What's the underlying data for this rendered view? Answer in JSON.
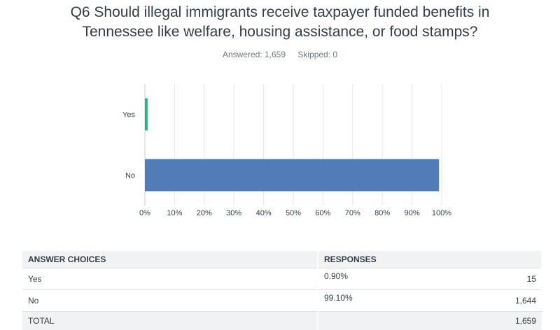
{
  "question": {
    "line1": "Q6 Should illegal immigrants receive taxpayer funded benefits in",
    "line2": "Tennessee like welfare, housing assistance, or food stamps?"
  },
  "stats": {
    "answered": "Answered: 1,659",
    "skipped": "Skipped: 0"
  },
  "chart_data": {
    "type": "bar",
    "orientation": "horizontal",
    "categories": [
      "Yes",
      "No"
    ],
    "values": [
      0.9,
      99.1
    ],
    "unit": "%",
    "xlim": [
      0,
      100
    ],
    "xticks": [
      "0%",
      "10%",
      "20%",
      "30%",
      "40%",
      "50%",
      "60%",
      "70%",
      "80%",
      "90%",
      "100%"
    ],
    "bar_colors": [
      "#26b37c",
      "#517cb8"
    ],
    "grid": true
  },
  "table": {
    "headers": [
      "ANSWER CHOICES",
      "RESPONSES"
    ],
    "rows": [
      {
        "choice": "Yes",
        "percent": "0.90%",
        "count": "15"
      },
      {
        "choice": "No",
        "percent": "99.10%",
        "count": "1,644"
      }
    ],
    "total": {
      "label": "TOTAL",
      "count": "1,659"
    }
  }
}
